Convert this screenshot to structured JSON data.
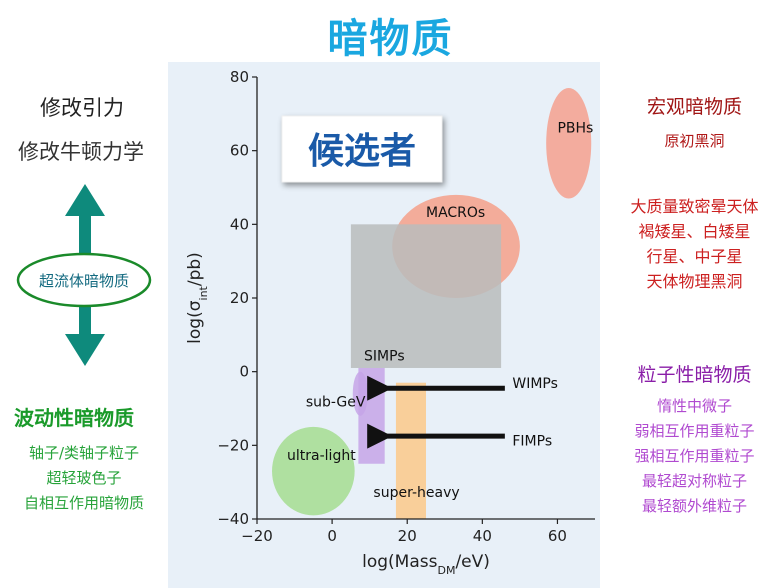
{
  "title": "暗物质",
  "candidates_label": "候选者",
  "left": {
    "modified_gravity": "修改引力",
    "mond": "修改牛顿力学",
    "superfluid": "超流体暗物质",
    "wave_title": "波动性暗物质",
    "wave_items": [
      "轴子/类轴子粒子",
      "超轻玻色子",
      "自相互作用暗物质"
    ]
  },
  "right": {
    "macro_title": "宏观暗物质",
    "macro_items": [
      "原初黑洞"
    ],
    "compact_title": "大质量致密晕天体",
    "compact_items": [
      "褐矮星、白矮星",
      "行星、中子星",
      "天体物理黑洞"
    ],
    "particle_title": "粒子性暗物质",
    "particle_items": [
      "惰性中微子",
      "弱相互作用重粒子",
      "强相互作用重粒子",
      "最轻超对称粒子",
      "最轻额外维粒子"
    ]
  },
  "chart_data": {
    "type": "scatter",
    "xlabel_main": "log(Mass",
    "xlabel_sub": "DM",
    "xlabel_end": "/eV)",
    "ylabel_main": "log(σ",
    "ylabel_sub": "int",
    "ylabel_end": "/pb)",
    "xlim": [
      -20,
      70
    ],
    "ylim": [
      -40,
      80
    ],
    "xticks": [
      -20,
      0,
      20,
      40,
      60
    ],
    "yticks": [
      -40,
      -20,
      0,
      20,
      40,
      60,
      80
    ],
    "regions": [
      {
        "name": "PBHs",
        "shape": "ellipse",
        "cx": 63,
        "cy": 62,
        "rx": 6,
        "ry": 15,
        "color": "#f5a08e"
      },
      {
        "name": "MACROs",
        "shape": "ellipse",
        "cx": 33,
        "cy": 34,
        "rx": 17,
        "ry": 14,
        "color": "#f4a08a"
      },
      {
        "name": "SIMPs",
        "shape": "rect",
        "x0": 5,
        "x1": 45,
        "y0": 1,
        "y1": 40,
        "color": "#b8bcbc"
      },
      {
        "name": "super-heavy",
        "shape": "rect",
        "x0": 17,
        "x1": 25,
        "y0": -40,
        "y1": -3,
        "color": "#fbc98a"
      },
      {
        "name": "ultra-light",
        "shape": "ellipse",
        "cx": -5,
        "cy": -27,
        "rx": 11,
        "ry": 12,
        "color": "#a4dd90"
      },
      {
        "name": "sub-GeV",
        "shape": "ellipse",
        "cx": 7.5,
        "cy": -6,
        "rx": 2,
        "ry": 6,
        "color": "#c5a4e8"
      },
      {
        "name": "WIMPs",
        "shape": "rect",
        "x0": 7,
        "x1": 14,
        "y0": -3,
        "y1": 1,
        "color": "#c5a4e8"
      },
      {
        "name": "FIMPs",
        "shape": "rect",
        "x0": 7,
        "x1": 14,
        "y0": -25,
        "y1": -3,
        "color": "#c5a4e8"
      }
    ],
    "labels": [
      {
        "text": "PBHs",
        "x": 60,
        "y": 65
      },
      {
        "text": "MACROs",
        "x": 25,
        "y": 42
      },
      {
        "text": "SIMPs",
        "x": 8.5,
        "y": 3
      },
      {
        "text": "WIMPs",
        "x": 48,
        "y": -4.5
      },
      {
        "text": "sub-GeV",
        "x": -7,
        "y": -9.5
      },
      {
        "text": "FIMPs",
        "x": 48,
        "y": -20
      },
      {
        "text": "ultra-light",
        "x": -12,
        "y": -24
      },
      {
        "text": "super-heavy",
        "x": 11,
        "y": -34
      }
    ],
    "arrows": [
      {
        "from": [
          46,
          -4.5
        ],
        "to": [
          12,
          -4.5
        ]
      },
      {
        "from": [
          46,
          -17.5
        ],
        "to": [
          12,
          -17.5
        ]
      }
    ]
  }
}
